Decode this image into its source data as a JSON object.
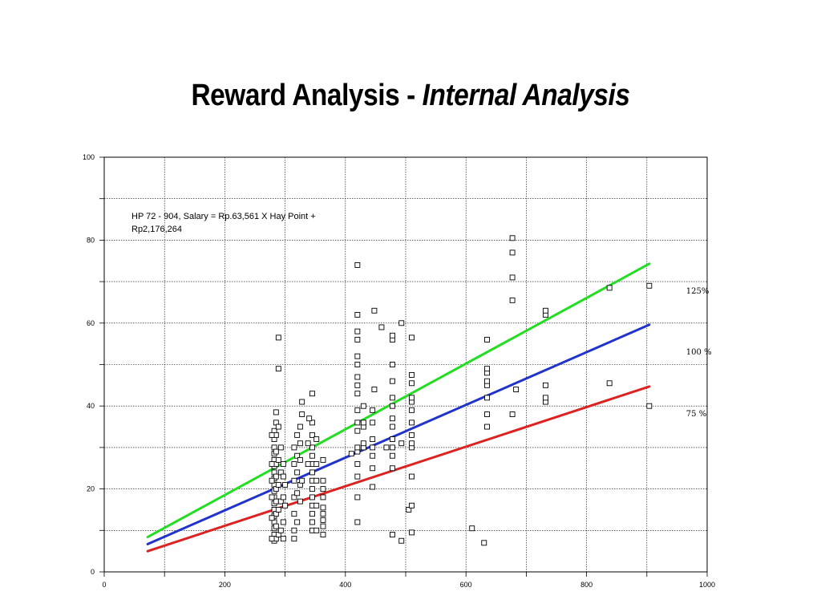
{
  "title": {
    "main": "Reward Analysis - ",
    "italic": "Internal Analysis"
  },
  "chart_data": {
    "type": "scatter",
    "xlim": [
      0,
      1000
    ],
    "ylim": [
      0,
      100
    ],
    "x_ticks": [
      "0",
      "200",
      "400",
      "600",
      "800",
      "1000"
    ],
    "y_ticks": [
      "0",
      "20",
      "40",
      "60",
      "80",
      "100"
    ],
    "grid": true,
    "annotation": [
      "HP 72 - 904, Salary = Rp.63,561 X Hay Point +",
      "Rp2,176,264"
    ],
    "lines": [
      {
        "name": "125%",
        "color": "#22dd22",
        "x": [
          72,
          904
        ],
        "y": [
          8.4,
          74.3
        ]
      },
      {
        "name": "100 %",
        "color": "#2233cc",
        "x": [
          72,
          904
        ],
        "y": [
          6.7,
          59.6
        ]
      },
      {
        "name": "75 %",
        "color": "#dd2222",
        "x": [
          72,
          904
        ],
        "y": [
          5.0,
          44.7
        ]
      }
    ],
    "points": [
      [
        282,
        7.5
      ],
      [
        282,
        9
      ],
      [
        282,
        10.5
      ],
      [
        282,
        12
      ],
      [
        282,
        13.5
      ],
      [
        282,
        15
      ],
      [
        282,
        16.5
      ],
      [
        282,
        18
      ],
      [
        282,
        19.5
      ],
      [
        282,
        21
      ],
      [
        282,
        22.5
      ],
      [
        282,
        24
      ],
      [
        282,
        25.5
      ],
      [
        282,
        27
      ],
      [
        282,
        28.5
      ],
      [
        282,
        30
      ],
      [
        282,
        32
      ],
      [
        282,
        34
      ],
      [
        285,
        8
      ],
      [
        285,
        11
      ],
      [
        285,
        14
      ],
      [
        285,
        17
      ],
      [
        285,
        20
      ],
      [
        285,
        23
      ],
      [
        285,
        26
      ],
      [
        285,
        29
      ],
      [
        285,
        33
      ],
      [
        285,
        36
      ],
      [
        285,
        38.5
      ],
      [
        278,
        8
      ],
      [
        278,
        13
      ],
      [
        278,
        18
      ],
      [
        278,
        22
      ],
      [
        278,
        26
      ],
      [
        278,
        33
      ],
      [
        289,
        9
      ],
      [
        289,
        15
      ],
      [
        289,
        21
      ],
      [
        289,
        27
      ],
      [
        289,
        35
      ],
      [
        289,
        49
      ],
      [
        289,
        56.5
      ],
      [
        293,
        10
      ],
      [
        293,
        17
      ],
      [
        293,
        24
      ],
      [
        293,
        30
      ],
      [
        297,
        8
      ],
      [
        297,
        12
      ],
      [
        297,
        18
      ],
      [
        297,
        23
      ],
      [
        297,
        26
      ],
      [
        300,
        16
      ],
      [
        300,
        21
      ],
      [
        315,
        8
      ],
      [
        315,
        10
      ],
      [
        315,
        14
      ],
      [
        315,
        18
      ],
      [
        315,
        22
      ],
      [
        315,
        26
      ],
      [
        315,
        30
      ],
      [
        320,
        12
      ],
      [
        320,
        19
      ],
      [
        320,
        24
      ],
      [
        320,
        28
      ],
      [
        320,
        33
      ],
      [
        325,
        17
      ],
      [
        325,
        21
      ],
      [
        325,
        27
      ],
      [
        325,
        31
      ],
      [
        325,
        35
      ],
      [
        328,
        22
      ],
      [
        328,
        38
      ],
      [
        328,
        41
      ],
      [
        345,
        10
      ],
      [
        345,
        12
      ],
      [
        345,
        14
      ],
      [
        345,
        16
      ],
      [
        345,
        18
      ],
      [
        345,
        20
      ],
      [
        345,
        22
      ],
      [
        345,
        24
      ],
      [
        345,
        26
      ],
      [
        345,
        28
      ],
      [
        345,
        30
      ],
      [
        345,
        33
      ],
      [
        345,
        36
      ],
      [
        345,
        43
      ],
      [
        338,
        26
      ],
      [
        338,
        31
      ],
      [
        340,
        37
      ],
      [
        352,
        10
      ],
      [
        352,
        16
      ],
      [
        352,
        22
      ],
      [
        352,
        26
      ],
      [
        352,
        32
      ],
      [
        363,
        9
      ],
      [
        363,
        11
      ],
      [
        363,
        12.5
      ],
      [
        363,
        14
      ],
      [
        363,
        15.5
      ],
      [
        363,
        18
      ],
      [
        363,
        20
      ],
      [
        363,
        22
      ],
      [
        363,
        27
      ],
      [
        410,
        28.5
      ],
      [
        420,
        12
      ],
      [
        420,
        18
      ],
      [
        420,
        23
      ],
      [
        420,
        26
      ],
      [
        420,
        29
      ],
      [
        420,
        30
      ],
      [
        420,
        34
      ],
      [
        420,
        36
      ],
      [
        420,
        39
      ],
      [
        420,
        43
      ],
      [
        420,
        45
      ],
      [
        420,
        47
      ],
      [
        420,
        50
      ],
      [
        420,
        52
      ],
      [
        420,
        56
      ],
      [
        420,
        58
      ],
      [
        420,
        62
      ],
      [
        420,
        74
      ],
      [
        430,
        30
      ],
      [
        430,
        31
      ],
      [
        430,
        35
      ],
      [
        430,
        36
      ],
      [
        430,
        40
      ],
      [
        445,
        20.5
      ],
      [
        445,
        25
      ],
      [
        445,
        28
      ],
      [
        445,
        30
      ],
      [
        445,
        32
      ],
      [
        445,
        36
      ],
      [
        445,
        39
      ],
      [
        448,
        44
      ],
      [
        448,
        63
      ],
      [
        460,
        59
      ],
      [
        468,
        30
      ],
      [
        478,
        9
      ],
      [
        478,
        25
      ],
      [
        478,
        28
      ],
      [
        478,
        30
      ],
      [
        478,
        32
      ],
      [
        478,
        35
      ],
      [
        478,
        37
      ],
      [
        478,
        40
      ],
      [
        478,
        42
      ],
      [
        478,
        46
      ],
      [
        478,
        50
      ],
      [
        478,
        56
      ],
      [
        478,
        57
      ],
      [
        493,
        7.5
      ],
      [
        493,
        31
      ],
      [
        493,
        60
      ],
      [
        505,
        15
      ],
      [
        510,
        9.5
      ],
      [
        510,
        16
      ],
      [
        510,
        23
      ],
      [
        510,
        30
      ],
      [
        510,
        31
      ],
      [
        510,
        33
      ],
      [
        510,
        36
      ],
      [
        510,
        39
      ],
      [
        510,
        41
      ],
      [
        510,
        42
      ],
      [
        510,
        45.5
      ],
      [
        510,
        47.5
      ],
      [
        510,
        56.5
      ],
      [
        610,
        10.5
      ],
      [
        630,
        7
      ],
      [
        635,
        35
      ],
      [
        635,
        38
      ],
      [
        635,
        42
      ],
      [
        635,
        45
      ],
      [
        635,
        46
      ],
      [
        635,
        48
      ],
      [
        635,
        49
      ],
      [
        635,
        56
      ],
      [
        677,
        38
      ],
      [
        677,
        65.5
      ],
      [
        677,
        71
      ],
      [
        677,
        77
      ],
      [
        677,
        80.5
      ],
      [
        683,
        44
      ],
      [
        732,
        41
      ],
      [
        732,
        42
      ],
      [
        732,
        45
      ],
      [
        732,
        62
      ],
      [
        732,
        63
      ],
      [
        838,
        45.5
      ],
      [
        838,
        68.5
      ],
      [
        904,
        40
      ],
      [
        904,
        69
      ]
    ]
  }
}
